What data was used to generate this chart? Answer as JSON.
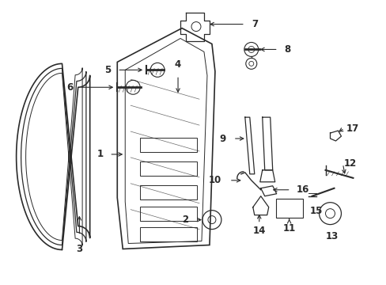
{
  "bg_color": "#ffffff",
  "line_color": "#2a2a2a",
  "fig_width": 4.89,
  "fig_height": 3.6,
  "dpi": 100,
  "label_fontsize": 8.5,
  "label_fontweight": "bold"
}
